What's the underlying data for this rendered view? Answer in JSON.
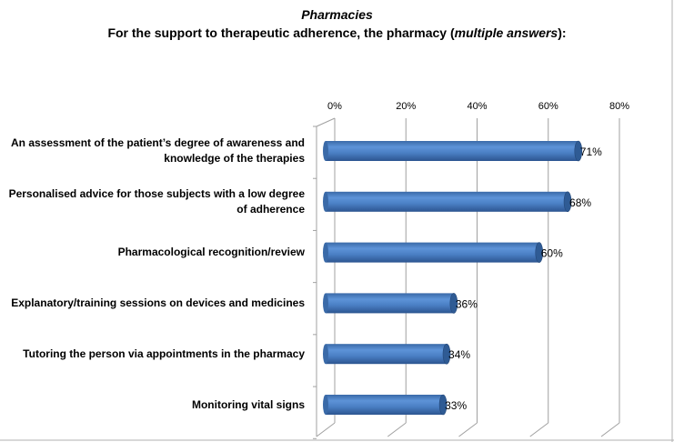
{
  "chart_data": {
    "type": "bar",
    "orientation": "horizontal",
    "title": "Pharmacies",
    "subtitle_parts": [
      "For the support to therapeutic adherence, the pharmacy (",
      "multiple answers",
      "):"
    ],
    "categories": [
      "An assessment of the patient’s degree of awareness and knowledge of the therapies",
      "Personalised advice for those subjects with a low degree of adherence",
      "Pharmacological recognition/review",
      "Explanatory/training sessions on devices and medicines",
      "Tutoring the person via appointments in the pharmacy",
      "Monitoring vital signs"
    ],
    "category_lines": [
      [
        "An assessment of the patient’s degree of awareness and",
        "knowledge of the therapies"
      ],
      [
        "Personalised advice for those subjects with a low degree",
        "of adherence"
      ],
      [
        "Pharmacological recognition/review"
      ],
      [
        "Explanatory/training sessions on devices and medicines"
      ],
      [
        "Tutoring the person via appointments in the pharmacy"
      ],
      [
        "Monitoring vital signs"
      ]
    ],
    "values": [
      71,
      68,
      60,
      36,
      34,
      33
    ],
    "data_labels": [
      "71%",
      "68%",
      "60%",
      "36%",
      "34%",
      "33%"
    ],
    "xlim": [
      0,
      80
    ],
    "xticks": [
      0,
      20,
      40,
      60,
      80
    ],
    "xtick_labels": [
      "0%",
      "20%",
      "40%",
      "60%",
      "80%"
    ],
    "axis_position": "top",
    "grid": true,
    "bar_color": "#4F81BD"
  }
}
